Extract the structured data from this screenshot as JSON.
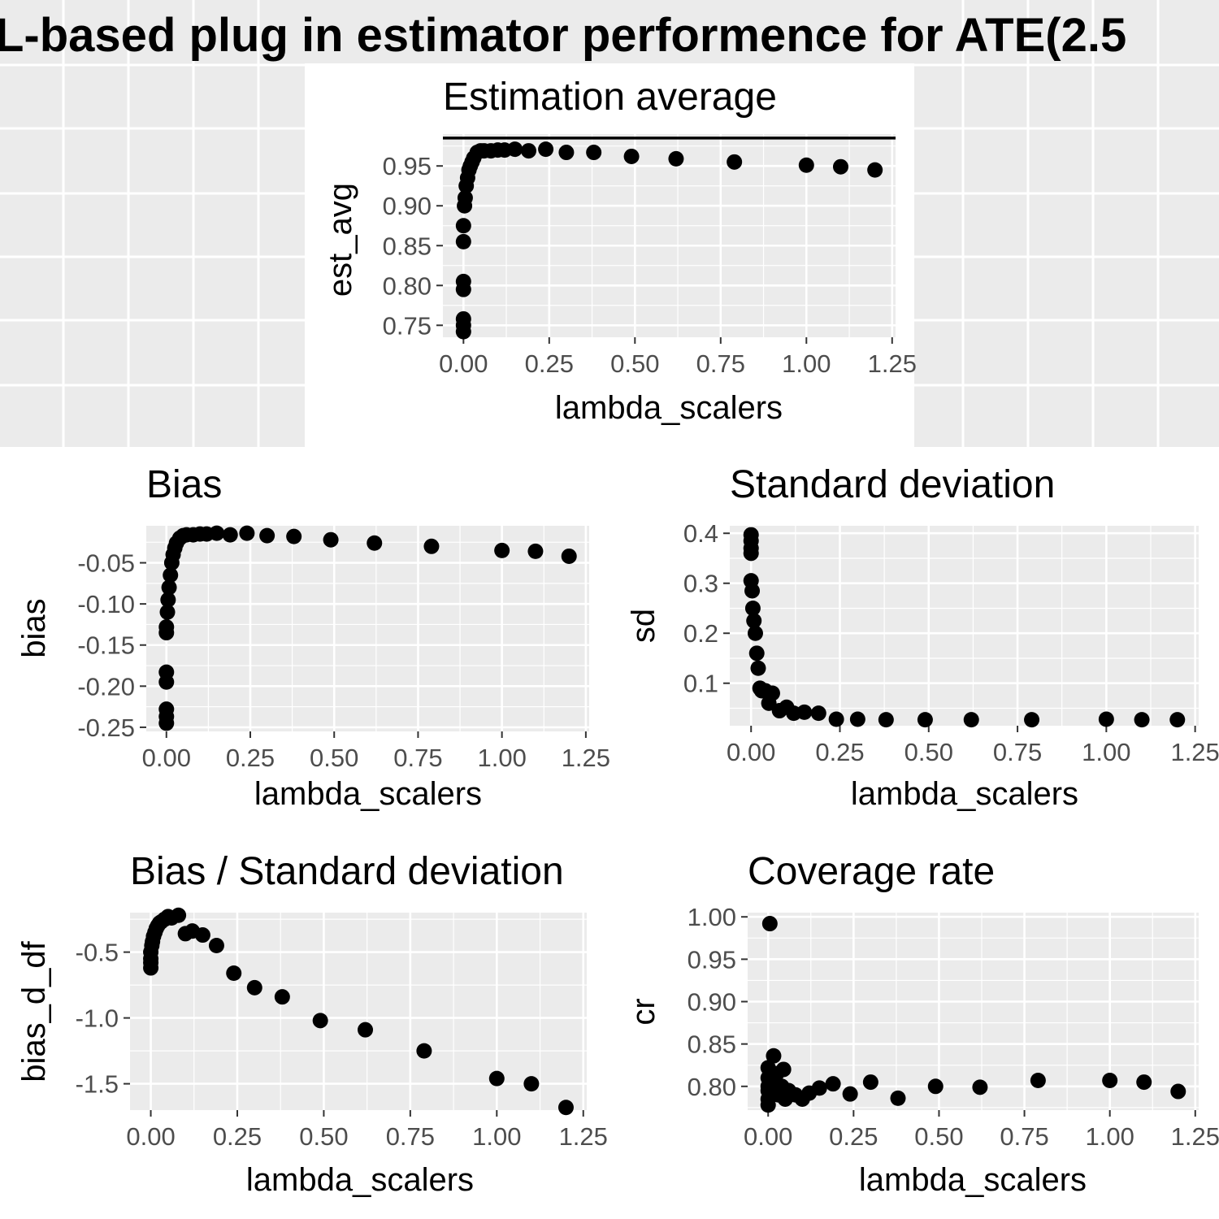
{
  "figure": {
    "title": "L-based plug in estimator performence for ATE(2.5"
  },
  "chart_data": [
    {
      "id": "est",
      "type": "scatter",
      "title": "Estimation average",
      "xlabel": "lambda_scalers",
      "ylabel": "est_avg",
      "xlim": [
        -0.06,
        1.26
      ],
      "ylim": [
        0.735,
        0.99
      ],
      "xticks": [
        "0.00",
        "0.25",
        "0.50",
        "0.75",
        "1.00",
        "1.25"
      ],
      "yticks": [
        "0.75",
        "0.80",
        "0.85",
        "0.90",
        "0.95"
      ],
      "hline": 0.985,
      "x": [
        0.0,
        0.0,
        0.0,
        0.0,
        0.0,
        0.0,
        0.0,
        0.003,
        0.005,
        0.008,
        0.012,
        0.016,
        0.02,
        0.025,
        0.03,
        0.04,
        0.05,
        0.06,
        0.08,
        0.1,
        0.12,
        0.15,
        0.19,
        0.24,
        0.3,
        0.38,
        0.49,
        0.62,
        0.79,
        1.0,
        1.1,
        1.2
      ],
      "y": [
        0.742,
        0.75,
        0.758,
        0.795,
        0.805,
        0.855,
        0.875,
        0.9,
        0.91,
        0.925,
        0.935,
        0.945,
        0.95,
        0.955,
        0.96,
        0.967,
        0.969,
        0.969,
        0.969,
        0.97,
        0.97,
        0.971,
        0.969,
        0.971,
        0.967,
        0.967,
        0.962,
        0.959,
        0.955,
        0.951,
        0.949,
        0.945
      ]
    },
    {
      "id": "bias",
      "type": "scatter",
      "title": "Bias",
      "xlabel": "lambda_scalers",
      "ylabel": "bias",
      "xlim": [
        -0.06,
        1.26
      ],
      "ylim": [
        -0.255,
        -0.005
      ],
      "xticks": [
        "0.00",
        "0.25",
        "0.50",
        "0.75",
        "1.00",
        "1.25"
      ],
      "yticks": [
        "-0.05",
        "-0.10",
        "-0.15",
        "-0.20",
        "-0.25"
      ],
      "x": [
        0.0,
        0.0,
        0.0,
        0.0,
        0.0,
        0.0,
        0.0,
        0.003,
        0.005,
        0.008,
        0.012,
        0.016,
        0.02,
        0.025,
        0.03,
        0.04,
        0.05,
        0.06,
        0.08,
        0.1,
        0.12,
        0.15,
        0.19,
        0.24,
        0.3,
        0.38,
        0.49,
        0.62,
        0.79,
        1.0,
        1.1,
        1.2
      ],
      "y": [
        -0.245,
        -0.237,
        -0.228,
        -0.195,
        -0.183,
        -0.135,
        -0.128,
        -0.11,
        -0.095,
        -0.08,
        -0.065,
        -0.05,
        -0.04,
        -0.032,
        -0.026,
        -0.02,
        -0.017,
        -0.016,
        -0.016,
        -0.015,
        -0.015,
        -0.014,
        -0.016,
        -0.014,
        -0.017,
        -0.018,
        -0.022,
        -0.026,
        -0.03,
        -0.035,
        -0.036,
        -0.042
      ]
    },
    {
      "id": "sd",
      "type": "scatter",
      "title": "Standard deviation",
      "xlabel": "lambda_scalers",
      "ylabel": "sd",
      "xlim": [
        -0.06,
        1.26
      ],
      "ylim": [
        0.015,
        0.415
      ],
      "xticks": [
        "0.00",
        "0.25",
        "0.50",
        "0.75",
        "1.00",
        "1.25"
      ],
      "yticks": [
        "0.4",
        "0.3",
        "0.2",
        "0.1"
      ],
      "x": [
        0.0,
        0.0,
        0.0,
        0.0,
        0.0,
        0.003,
        0.005,
        0.008,
        0.012,
        0.016,
        0.02,
        0.025,
        0.03,
        0.04,
        0.05,
        0.06,
        0.08,
        0.1,
        0.12,
        0.15,
        0.19,
        0.24,
        0.3,
        0.38,
        0.49,
        0.62,
        0.79,
        1.0,
        1.1,
        1.2
      ],
      "y": [
        0.397,
        0.385,
        0.37,
        0.36,
        0.305,
        0.285,
        0.25,
        0.225,
        0.2,
        0.16,
        0.13,
        0.09,
        0.085,
        0.085,
        0.06,
        0.08,
        0.045,
        0.052,
        0.04,
        0.042,
        0.04,
        0.028,
        0.028,
        0.027,
        0.027,
        0.027,
        0.027,
        0.028,
        0.027,
        0.027
      ]
    },
    {
      "id": "bsd",
      "type": "scatter",
      "title": "Bias / Standard deviation",
      "xlabel": "lambda_scalers",
      "ylabel": "bias_d_df",
      "xlim": [
        -0.06,
        1.26
      ],
      "ylim": [
        -1.7,
        -0.2
      ],
      "xticks": [
        "0.00",
        "0.25",
        "0.50",
        "0.75",
        "1.00",
        "1.25"
      ],
      "yticks": [
        "-0.5",
        "-1.0",
        "-1.5"
      ],
      "x": [
        0.0,
        0.0,
        0.0,
        0.0,
        0.003,
        0.005,
        0.008,
        0.012,
        0.016,
        0.02,
        0.025,
        0.03,
        0.04,
        0.05,
        0.06,
        0.08,
        0.1,
        0.12,
        0.15,
        0.19,
        0.24,
        0.3,
        0.38,
        0.49,
        0.62,
        0.79,
        1.0,
        1.1,
        1.2
      ],
      "y": [
        -0.62,
        -0.58,
        -0.55,
        -0.5,
        -0.45,
        -0.42,
        -0.38,
        -0.35,
        -0.32,
        -0.3,
        -0.28,
        -0.27,
        -0.25,
        -0.23,
        -0.24,
        -0.22,
        -0.36,
        -0.34,
        -0.37,
        -0.45,
        -0.66,
        -0.77,
        -0.84,
        -1.02,
        -1.09,
        -1.25,
        -1.46,
        -1.5,
        -1.68
      ]
    },
    {
      "id": "cr",
      "type": "scatter",
      "title": "Coverage rate",
      "xlabel": "lambda_scalers",
      "ylabel": "cr",
      "xlim": [
        -0.06,
        1.26
      ],
      "ylim": [
        0.772,
        1.005
      ],
      "xticks": [
        "0.00",
        "0.25",
        "0.50",
        "0.75",
        "1.00",
        "1.25"
      ],
      "yticks": [
        "1.00",
        "0.95",
        "0.90",
        "0.85",
        "0.80"
      ],
      "x": [
        0.0,
        0.0,
        0.0,
        0.0,
        0.0,
        0.0,
        0.005,
        0.01,
        0.012,
        0.016,
        0.02,
        0.025,
        0.03,
        0.04,
        0.045,
        0.05,
        0.06,
        0.08,
        0.1,
        0.12,
        0.15,
        0.19,
        0.24,
        0.3,
        0.38,
        0.49,
        0.62,
        0.79,
        1.0,
        1.1,
        1.2
      ],
      "y": [
        0.778,
        0.785,
        0.795,
        0.8,
        0.81,
        0.822,
        0.992,
        0.8,
        0.805,
        0.836,
        0.81,
        0.815,
        0.79,
        0.8,
        0.82,
        0.785,
        0.795,
        0.79,
        0.785,
        0.792,
        0.798,
        0.803,
        0.791,
        0.805,
        0.786,
        0.8,
        0.799,
        0.807,
        0.807,
        0.805,
        0.794
      ]
    }
  ]
}
